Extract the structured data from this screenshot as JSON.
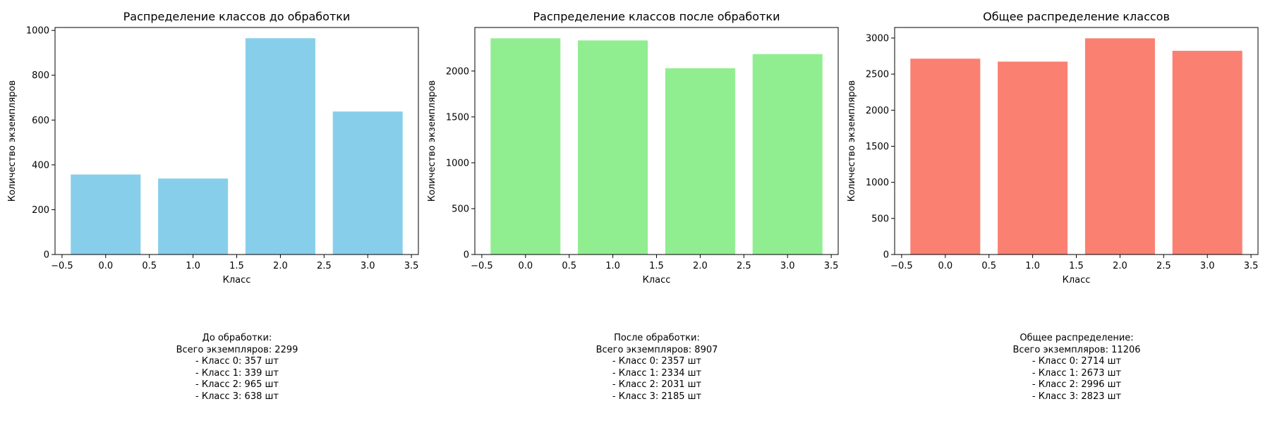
{
  "chart_data": [
    {
      "type": "bar",
      "title": "Распределение классов до обработки",
      "xlabel": "Класс",
      "ylabel": "Количество экземпляров",
      "x": [
        0,
        1,
        2,
        3
      ],
      "values": [
        357,
        339,
        965,
        638
      ],
      "xlim": [
        -0.58,
        3.58
      ],
      "ylim": [
        0,
        1013
      ],
      "xticks": [
        "−0.5",
        "0.0",
        "0.5",
        "1.0",
        "1.5",
        "2.0",
        "2.5",
        "3.0",
        "3.5"
      ],
      "yticks": [
        "0",
        "200",
        "400",
        "600",
        "800",
        "1000"
      ],
      "color": "#87ceeb",
      "grid": false
    },
    {
      "type": "bar",
      "title": "Распределение классов после обработки",
      "xlabel": "Класс",
      "ylabel": "Количество экземпляров",
      "x": [
        0,
        1,
        2,
        3
      ],
      "values": [
        2357,
        2334,
        2031,
        2185
      ],
      "xlim": [
        -0.58,
        3.58
      ],
      "ylim": [
        0,
        2475
      ],
      "xticks": [
        "−0.5",
        "0.0",
        "0.5",
        "1.0",
        "1.5",
        "2.0",
        "2.5",
        "3.0",
        "3.5"
      ],
      "yticks": [
        "0",
        "500",
        "1000",
        "1500",
        "2000"
      ],
      "color": "#90ee90",
      "grid": false
    },
    {
      "type": "bar",
      "title": "Общее распределение классов",
      "xlabel": "Класс",
      "ylabel": "Количество экземпляров",
      "x": [
        0,
        1,
        2,
        3
      ],
      "values": [
        2714,
        2673,
        2996,
        2823
      ],
      "xlim": [
        -0.58,
        3.58
      ],
      "ylim": [
        0,
        3146
      ],
      "xticks": [
        "−0.5",
        "0.0",
        "0.5",
        "1.0",
        "1.5",
        "2.0",
        "2.5",
        "3.0",
        "3.5"
      ],
      "yticks": [
        "0",
        "500",
        "1000",
        "1500",
        "2000",
        "2500",
        "3000"
      ],
      "color": "#fa8072",
      "grid": false
    }
  ],
  "summaries": [
    {
      "heading": "До обработки:",
      "total": "Всего экземпляров: 2299",
      "lines": [
        "- Класс 0: 357 шт",
        "- Класс 1: 339 шт",
        "- Класс 2: 965 шт",
        "- Класс 3: 638 шт"
      ]
    },
    {
      "heading": "После обработки:",
      "total": "Всего экземпляров: 8907",
      "lines": [
        "- Класс 0: 2357 шт",
        "- Класс 1: 2334 шт",
        "- Класс 2: 2031 шт",
        "- Класс 3: 2185 шт"
      ]
    },
    {
      "heading": "Общее распределение:",
      "total": "Всего экземпляров: 11206",
      "lines": [
        "- Класс 0: 2714 шт",
        "- Класс 1: 2673 шт",
        "- Класс 2: 2996 шт",
        "- Класс 3: 2823 шт"
      ]
    }
  ]
}
